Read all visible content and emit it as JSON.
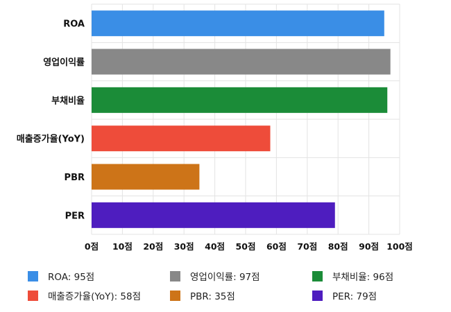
{
  "chart_data": {
    "type": "bar",
    "orientation": "horizontal",
    "categories": [
      "ROA",
      "영업이익률",
      "부채비율",
      "매출증가율(YoY)",
      "PBR",
      "PER"
    ],
    "values": [
      95,
      97,
      96,
      58,
      35,
      79
    ],
    "colors": [
      "#3a8ee6",
      "#888888",
      "#1b8c38",
      "#ee4c3a",
      "#cd7418",
      "#4e1dbf"
    ],
    "xlim": [
      0,
      100
    ],
    "xticks": [
      "0점",
      "10점",
      "20점",
      "30점",
      "40점",
      "50점",
      "60점",
      "70점",
      "80점",
      "90점",
      "100점"
    ],
    "grid": true,
    "legend_position": "bottom"
  },
  "legend": [
    {
      "label": "ROA: 95점",
      "color": "#3a8ee6"
    },
    {
      "label": "영업이익률: 97점",
      "color": "#888888"
    },
    {
      "label": "부채비율: 96점",
      "color": "#1b8c38"
    },
    {
      "label": "매출증가율(YoY): 58점",
      "color": "#ee4c3a"
    },
    {
      "label": "PBR: 35점",
      "color": "#cd7418"
    },
    {
      "label": "PER: 79점",
      "color": "#4e1dbf"
    }
  ]
}
